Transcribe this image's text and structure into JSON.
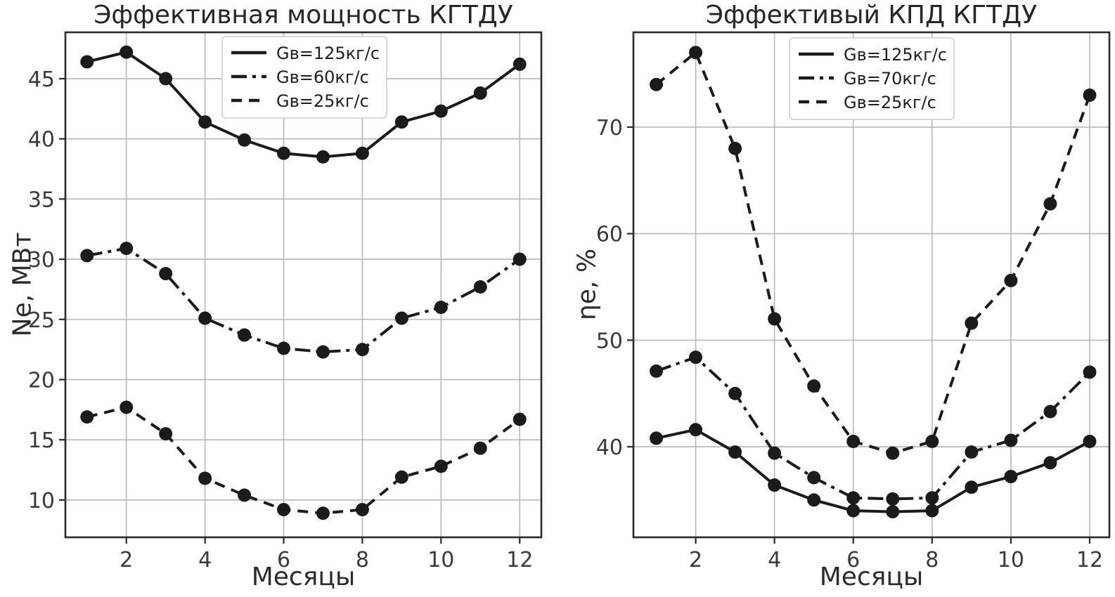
{
  "figure": {
    "background": "#ffffff",
    "grid_color": "#bdbdbd",
    "frame_color": "#2a2a2a",
    "line_color": "#1b1b1b",
    "tick_label_color": "#3a3a3a"
  },
  "chart_data": [
    {
      "type": "line",
      "title": "Эффективная мощность КГТДУ",
      "xlabel": "Месяцы",
      "ylabel": "Ne, МВт",
      "x": [
        1,
        2,
        3,
        4,
        5,
        6,
        7,
        8,
        9,
        10,
        11,
        12
      ],
      "xticks": [
        2,
        4,
        6,
        8,
        10,
        12
      ],
      "yticks": [
        10,
        15,
        20,
        25,
        30,
        35,
        40,
        45
      ],
      "xlim": [
        0.45,
        12.55
      ],
      "ylim": [
        6.9,
        48.85
      ],
      "grid": true,
      "legend_position": "upper center",
      "series": [
        {
          "name": "Gв=125кг/с",
          "linestyle": "solid",
          "marker": "o",
          "values": [
            46.4,
            47.2,
            45.0,
            41.4,
            39.9,
            38.8,
            38.5,
            38.8,
            41.4,
            42.3,
            43.8,
            46.2
          ]
        },
        {
          "name": "Gв=60кг/с",
          "linestyle": "dashdot",
          "marker": "o",
          "values": [
            30.3,
            30.9,
            28.8,
            25.1,
            23.7,
            22.6,
            22.3,
            22.5,
            25.1,
            26.0,
            27.7,
            30.0
          ]
        },
        {
          "name": "Gв=25кг/с",
          "linestyle": "dashed",
          "marker": "o",
          "values": [
            16.9,
            17.7,
            15.5,
            11.8,
            10.4,
            9.2,
            8.9,
            9.2,
            11.9,
            12.8,
            14.3,
            16.7
          ]
        }
      ]
    },
    {
      "type": "line",
      "title": "Эффективый КПД КГТДУ",
      "xlabel": "Месяцы",
      "ylabel": "ηe, %",
      "x": [
        1,
        2,
        3,
        4,
        5,
        6,
        7,
        8,
        9,
        10,
        11,
        12
      ],
      "xticks": [
        2,
        4,
        6,
        8,
        10,
        12
      ],
      "yticks": [
        40,
        50,
        60,
        70
      ],
      "xlim": [
        0.42,
        12.5
      ],
      "ylim": [
        31.5,
        78.9
      ],
      "grid": true,
      "legend_position": "upper center",
      "series": [
        {
          "name": "Gв=125кг/с",
          "linestyle": "solid",
          "marker": "o",
          "values": [
            40.8,
            41.6,
            39.5,
            36.4,
            35.0,
            34.0,
            33.9,
            34.0,
            36.2,
            37.2,
            38.5,
            40.5
          ]
        },
        {
          "name": "Gв=70кг/с",
          "linestyle": "dashdot",
          "marker": "o",
          "values": [
            47.1,
            48.4,
            45.0,
            39.4,
            37.1,
            35.2,
            35.1,
            35.2,
            39.5,
            40.6,
            43.3,
            47.0
          ]
        },
        {
          "name": "Gв=25кг/с",
          "linestyle": "dashed",
          "marker": "o",
          "values": [
            74.0,
            77.0,
            68.0,
            52.0,
            45.7,
            40.5,
            39.4,
            40.5,
            51.6,
            55.6,
            62.8,
            73.0
          ]
        }
      ]
    }
  ]
}
